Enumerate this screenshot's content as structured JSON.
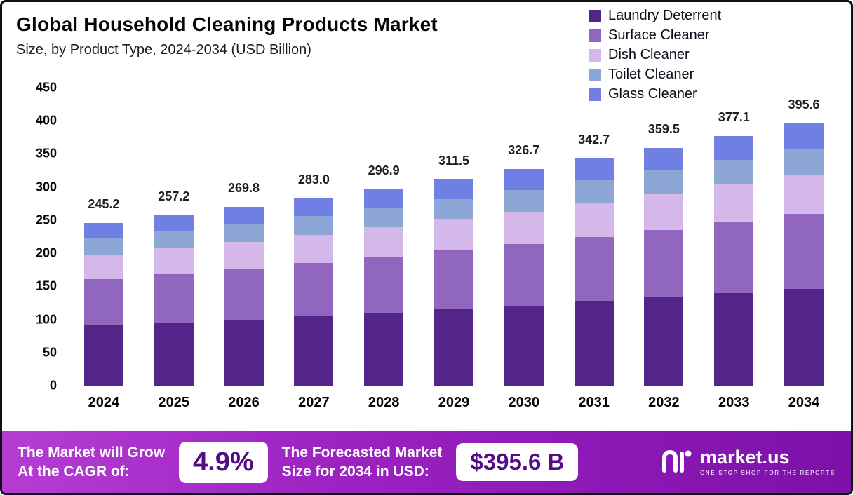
{
  "chart_data": {
    "type": "bar",
    "stacked": true,
    "title": "Global Household Cleaning Products Market",
    "subtitle": "Size, by Product Type, 2024-2034 (USD Billion)",
    "categories": [
      "2024",
      "2025",
      "2026",
      "2027",
      "2028",
      "2029",
      "2030",
      "2031",
      "2032",
      "2033",
      "2034"
    ],
    "totals": [
      245.2,
      257.2,
      269.8,
      283.0,
      296.9,
      311.5,
      326.7,
      342.7,
      359.5,
      377.1,
      395.6
    ],
    "series": [
      {
        "name": "Laundry Deterrent",
        "color": "#542588",
        "values": [
          90.7,
          95.2,
          99.8,
          104.7,
          109.9,
          115.3,
          120.9,
          126.8,
          133.0,
          139.5,
          146.4
        ]
      },
      {
        "name": "Surface Cleaner",
        "color": "#9166be",
        "values": [
          69.9,
          73.3,
          76.9,
          80.7,
          84.6,
          88.8,
          93.1,
          97.7,
          102.5,
          107.5,
          112.7
        ]
      },
      {
        "name": "Dish Cleaner",
        "color": "#d5b8ea",
        "values": [
          36.8,
          38.6,
          40.5,
          42.5,
          44.5,
          46.7,
          49.0,
          51.4,
          53.9,
          56.6,
          59.3
        ]
      },
      {
        "name": "Toilet Cleaner",
        "color": "#8ca6d5",
        "values": [
          24.5,
          25.7,
          27.0,
          28.3,
          29.7,
          31.2,
          32.7,
          34.3,
          36.0,
          37.7,
          39.6
        ]
      },
      {
        "name": "Glass Cleaner",
        "color": "#6f7fe3",
        "values": [
          23.3,
          24.4,
          25.6,
          26.8,
          28.2,
          29.5,
          31.0,
          32.5,
          34.1,
          35.8,
          37.6
        ]
      }
    ],
    "ylim": [
      0,
      450
    ],
    "yticks": [
      0,
      50,
      100,
      150,
      200,
      250,
      300,
      350,
      400,
      450
    ],
    "xlabel": "",
    "ylabel": "",
    "grid": false,
    "legend_position": "top-right"
  },
  "footer": {
    "cagr_label": "The Market will Grow\nAt the CAGR of:",
    "cagr_value": "4.9%",
    "forecast_label": "The Forecasted Market\nSize for 2034 in USD:",
    "forecast_value": "$395.6 B",
    "brand_name": "market.us",
    "brand_tagline": "ONE STOP SHOP FOR THE REPORTS"
  }
}
